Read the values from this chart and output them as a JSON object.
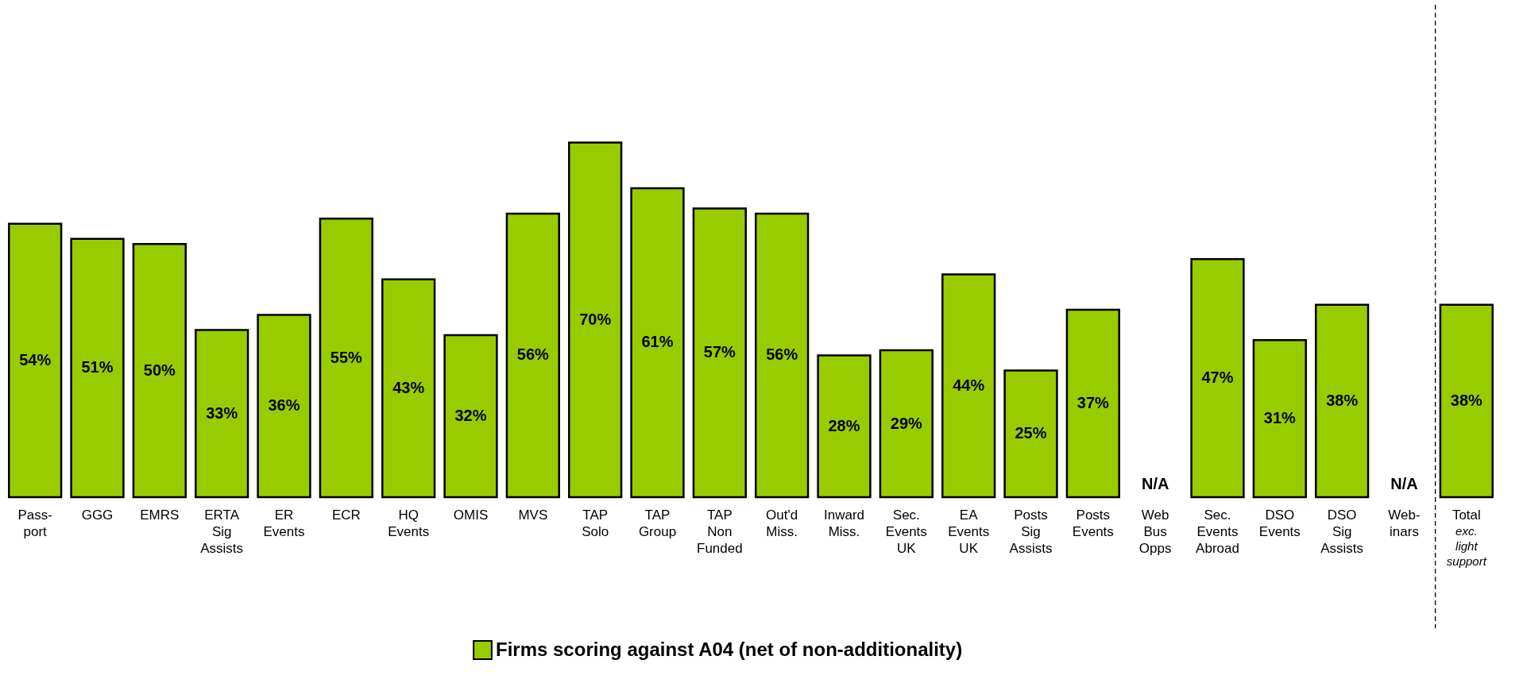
{
  "chart_data": {
    "type": "bar",
    "categories": [
      "Pass-\nport",
      "GGG",
      "EMRS",
      "ERTA\nSig\nAssists",
      "ER\nEvents",
      "ECR",
      "HQ\nEvents",
      "OMIS",
      "MVS",
      "TAP\nSolo",
      "TAP\nGroup",
      "TAP\nNon\nFunded",
      "Out'd\nMiss.",
      "Inward\nMiss.",
      "Sec.\nEvents\nUK",
      "EA\nEvents\nUK",
      "Posts\nSig\nAssists",
      "Posts\nEvents",
      "Web\nBus\nOpps",
      "Sec.\nEvents\nAbroad",
      "DSO\nEvents",
      "DSO\nSig\nAssists",
      "Web-\ninars",
      "Total"
    ],
    "series": [
      {
        "name": "Firms scoring against A04 (net of non-additionality)",
        "color": "#99cc00",
        "values": [
          54,
          51,
          50,
          33,
          36,
          55,
          43,
          32,
          56,
          70,
          61,
          57,
          56,
          28,
          29,
          44,
          25,
          37,
          null,
          47,
          31,
          38,
          null,
          38
        ],
        "value_labels": [
          "54%",
          "51%",
          "50%",
          "33%",
          "36%",
          "55%",
          "43%",
          "32%",
          "56%",
          "70%",
          "61%",
          "57%",
          "56%",
          "28%",
          "29%",
          "44%",
          "25%",
          "37%",
          "N/A",
          "47%",
          "31%",
          "38%",
          "N/A",
          "38%"
        ]
      }
    ],
    "annotations": [
      "exc.\nlight\nsupport"
    ],
    "legend": "bottom",
    "grid": false
  }
}
